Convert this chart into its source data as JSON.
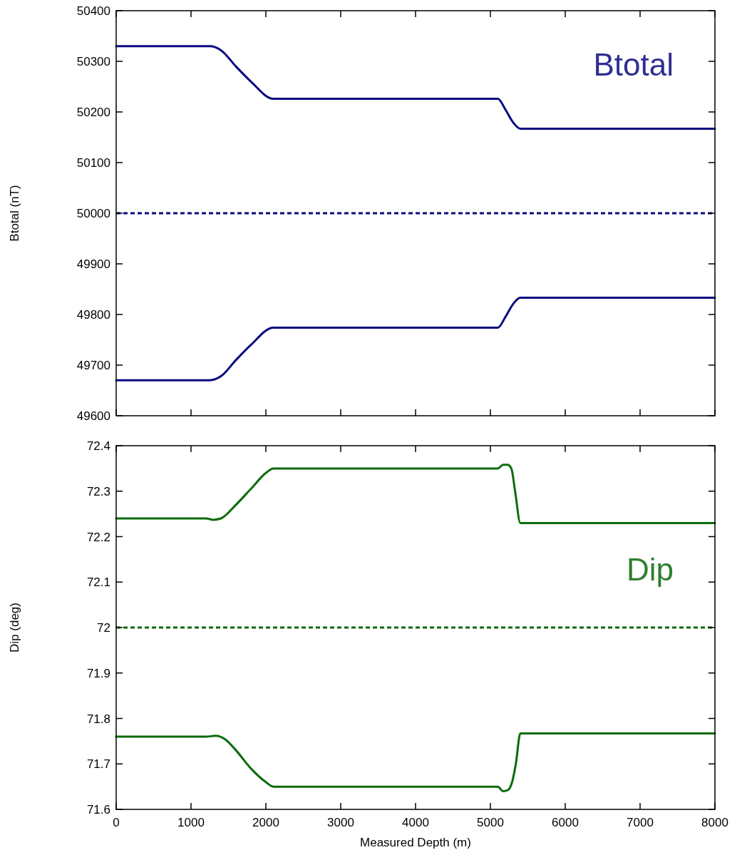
{
  "chart_data": [
    {
      "type": "line",
      "ylabel": "Btotal (nT)",
      "annotations": [
        "Btotal"
      ],
      "xlim": [
        0,
        8000
      ],
      "xticks": [
        0,
        1000,
        2000,
        3000,
        4000,
        5000,
        6000,
        7000,
        8000
      ],
      "ylim": [
        49600,
        50400
      ],
      "yticks": [
        49600,
        49700,
        49800,
        49900,
        50000,
        50100,
        50200,
        50300,
        50400
      ],
      "tick_labels": "y",
      "grid": false,
      "line_style": "solid",
      "marker": "none",
      "ref_lines": [
        {
          "axis": "y",
          "value": 50000,
          "color": "#0a0a80",
          "line_style": "dashed"
        }
      ],
      "series": [
        {
          "color": "#0a0a80",
          "x": [
            0,
            1250,
            1400,
            1600,
            1800,
            2100,
            5100,
            5200,
            5300,
            5400,
            8000
          ],
          "values": [
            50330,
            50330,
            50322,
            50290,
            50260,
            50226,
            50226,
            50205,
            50180,
            50167,
            50167
          ]
        },
        {
          "color": "#0a0a80",
          "x": [
            0,
            1250,
            1400,
            1600,
            1800,
            2100,
            5100,
            5200,
            5300,
            5400,
            8000
          ],
          "values": [
            49670,
            49670,
            49678,
            49710,
            49740,
            49774,
            49774,
            49795,
            49820,
            49833,
            49833
          ]
        }
      ]
    },
    {
      "type": "line",
      "xlabel": "Measured Depth (m)",
      "ylabel": "Dip (deg)",
      "annotations": [
        "Dip"
      ],
      "xlim": [
        0,
        8000
      ],
      "xticks": [
        0,
        1000,
        2000,
        3000,
        4000,
        5000,
        6000,
        7000,
        8000
      ],
      "ylim": [
        71.6,
        72.4
      ],
      "yticks": [
        71.6,
        71.7,
        71.8,
        71.9,
        72,
        72.1,
        72.2,
        72.3,
        72.4
      ],
      "grid": false,
      "line_style": "solid",
      "marker": "none",
      "ref_lines": [
        {
          "axis": "y",
          "value": 72,
          "color": "#0b6b0b",
          "line_style": "dashed"
        }
      ],
      "series": [
        {
          "color": "#0b6b0b",
          "x": [
            0,
            1200,
            1300,
            1400,
            1600,
            1800,
            2000,
            2100,
            5100,
            5170,
            5230,
            5280,
            5330,
            5400,
            8000
          ],
          "values": [
            72.24,
            72.24,
            72.237,
            72.24,
            72.27,
            72.305,
            72.34,
            72.35,
            72.35,
            72.358,
            72.358,
            72.35,
            72.3,
            72.23,
            72.23
          ]
        },
        {
          "color": "#0b6b0b",
          "x": [
            0,
            1200,
            1330,
            1450,
            1600,
            1800,
            2000,
            2100,
            5100,
            5170,
            5230,
            5290,
            5340,
            5400,
            8000
          ],
          "values": [
            71.76,
            71.76,
            71.762,
            71.755,
            71.73,
            71.69,
            71.66,
            71.65,
            71.65,
            71.64,
            71.642,
            71.66,
            71.7,
            71.767,
            71.767
          ]
        }
      ]
    }
  ]
}
